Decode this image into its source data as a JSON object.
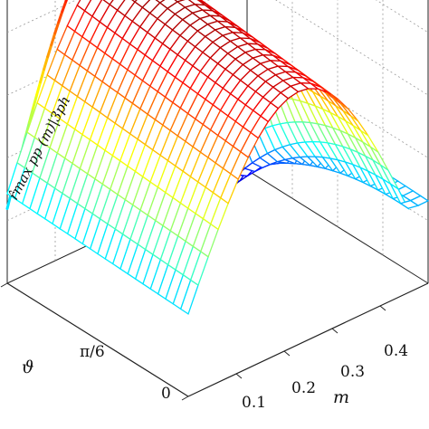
{
  "chart_data": {
    "type": "surface",
    "description_free": true,
    "axes": {
      "x": {
        "label": "m",
        "range": [
          0,
          0.5
        ],
        "ticks": [
          0.1,
          0.2,
          0.3,
          0.4
        ],
        "tick_labels": [
          "0.1",
          "0.2",
          "0.3",
          "0.4"
        ]
      },
      "y": {
        "label": "ϑ",
        "range": [
          0,
          0.5236
        ],
        "ticks": [
          0,
          0.5236
        ],
        "tick_labels": [
          "0",
          "π/6"
        ]
      }
    },
    "surface": {
      "grid_x": 24,
      "grid_y": 24,
      "colormap": "jet",
      "peak_m": 0.25
    },
    "curve": {
      "label": "r̂max pp (m)|3ph",
      "color": "#c81e1e"
    },
    "grid": true
  }
}
